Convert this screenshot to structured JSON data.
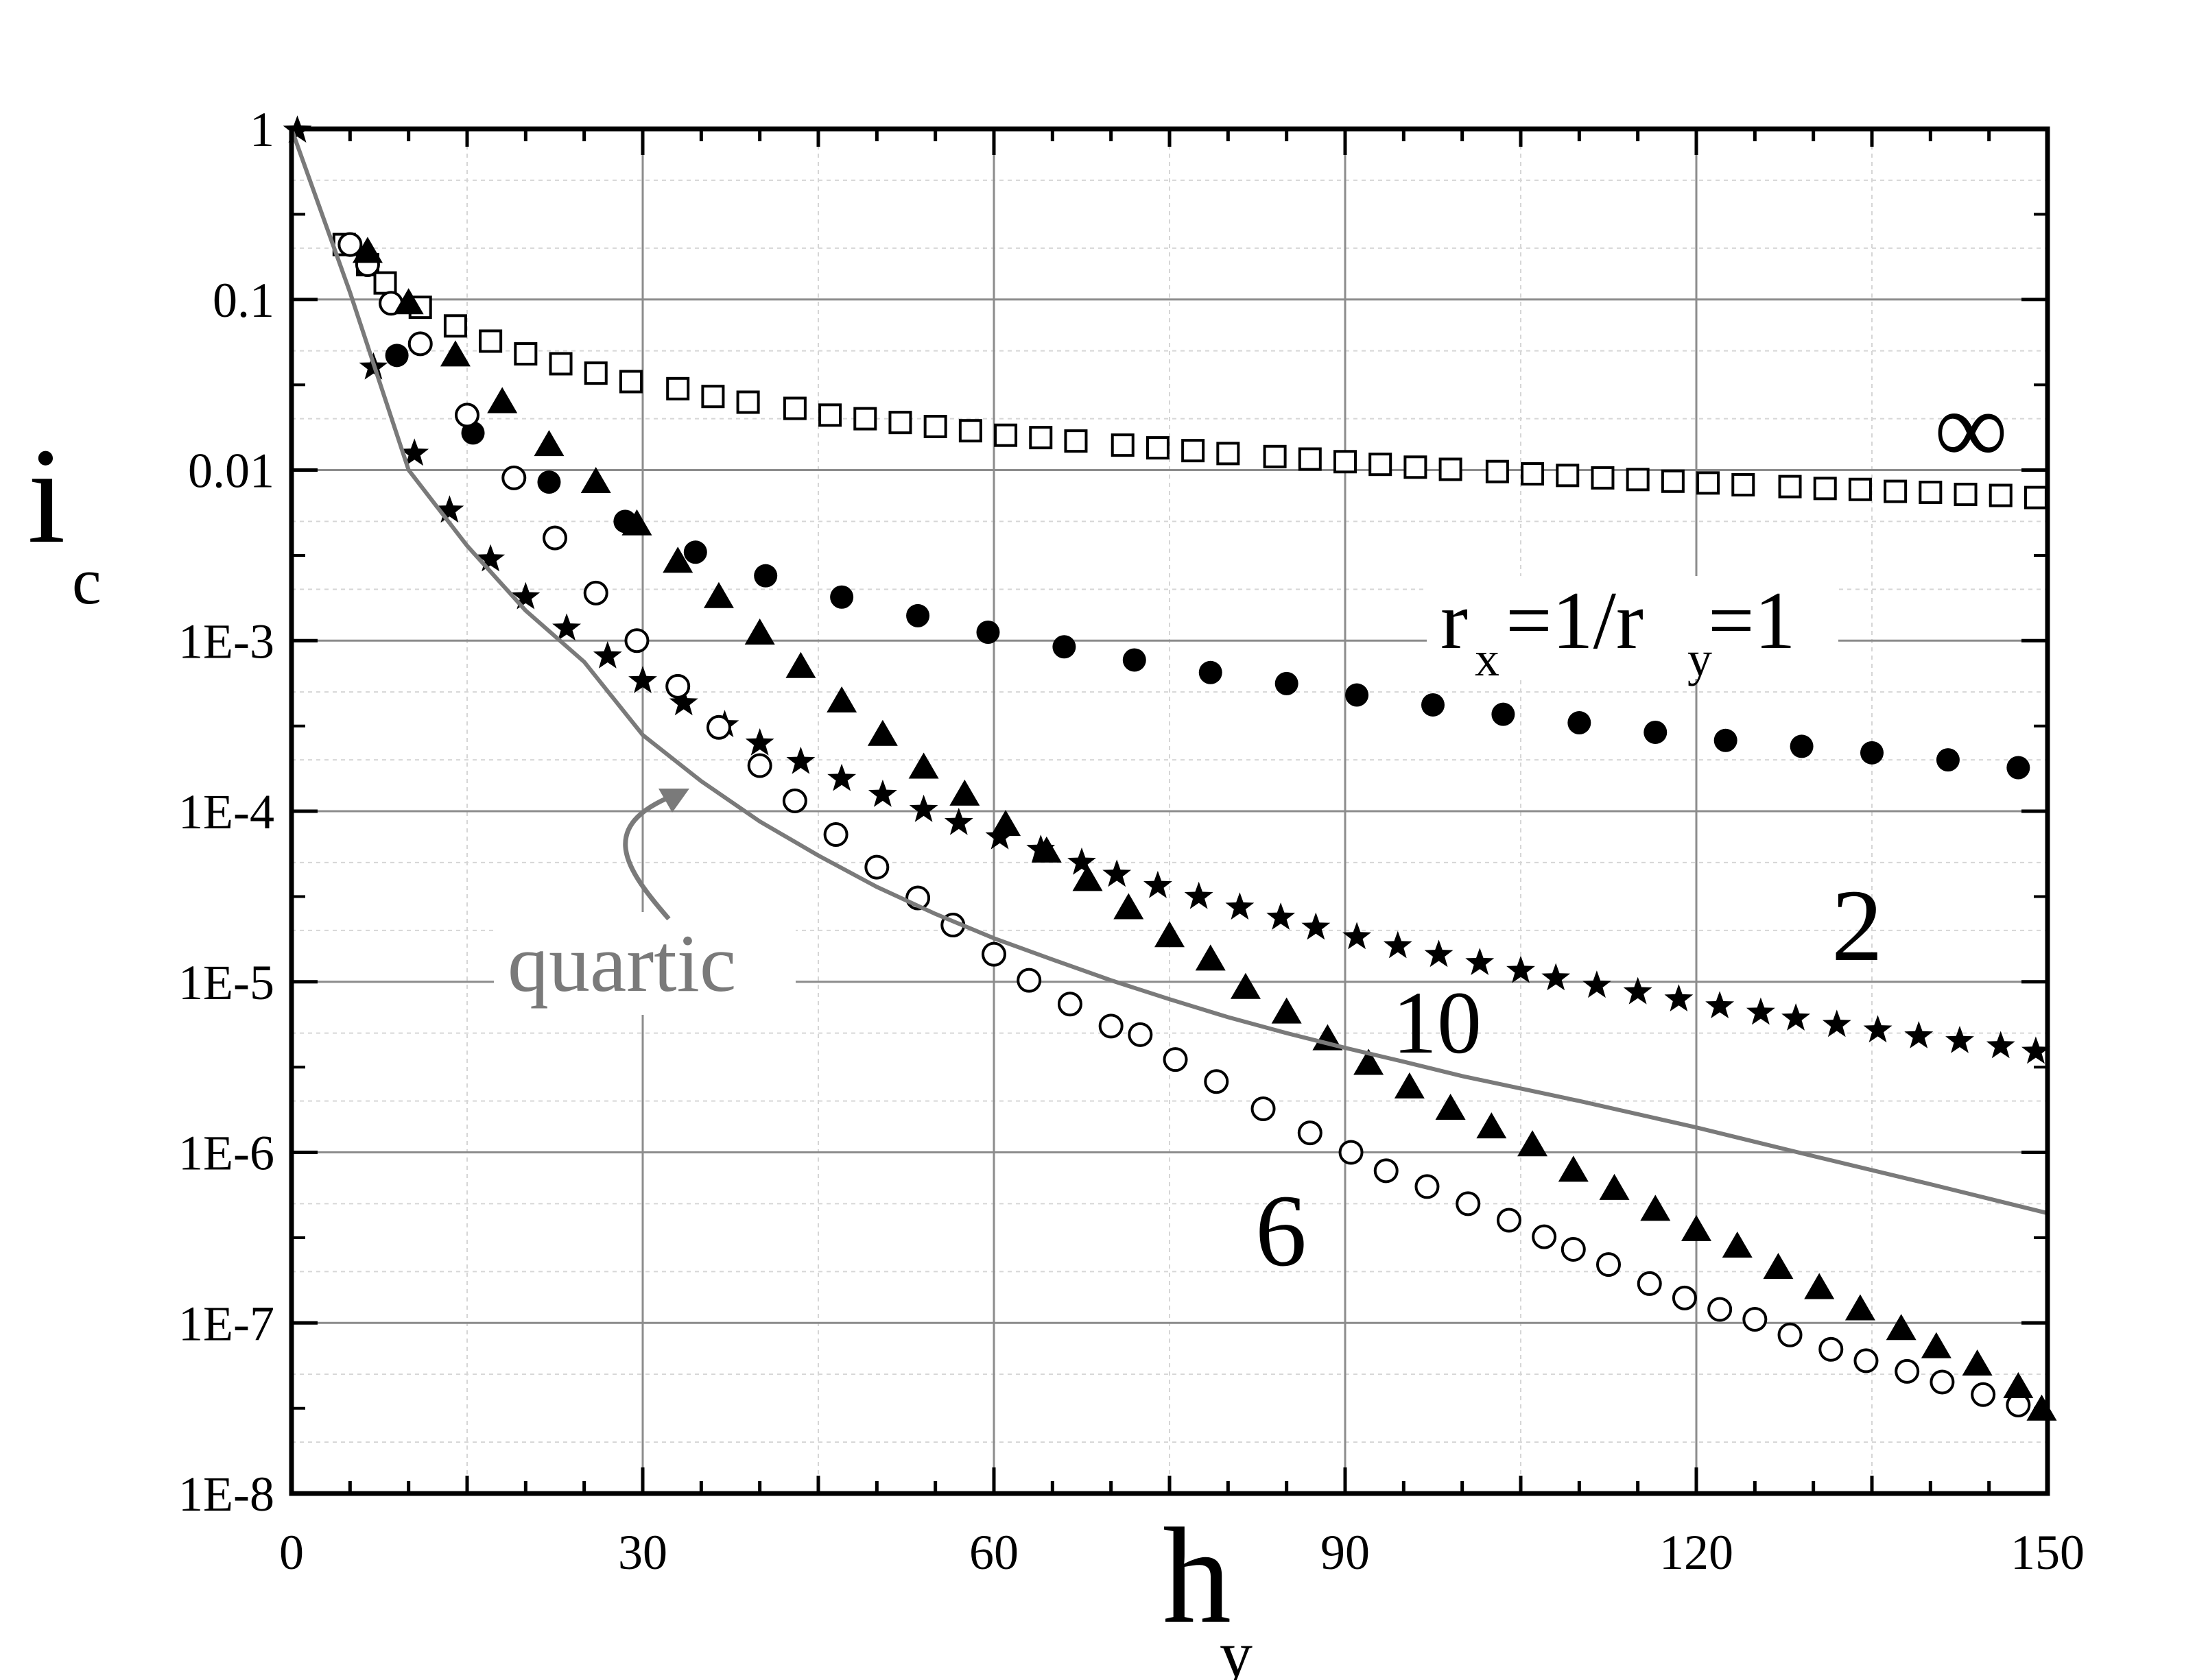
{
  "chart_data": {
    "type": "scatter",
    "title": "",
    "xlabel": {
      "main": "h",
      "sub": "y"
    },
    "ylabel": {
      "main": "i",
      "sub": "c"
    },
    "x_axis": {
      "range": [
        0,
        150
      ],
      "ticks": [
        0,
        30,
        60,
        90,
        120,
        150
      ],
      "tick_labels": [
        "0",
        "30",
        "60",
        "90",
        "120",
        "150"
      ],
      "scale": "linear"
    },
    "y_axis": {
      "range": [
        1e-08,
        1
      ],
      "scale": "log",
      "ticks": [
        1,
        0.1,
        0.01,
        0.001,
        0.0001,
        1e-05,
        1e-06,
        1e-07,
        1e-08
      ],
      "tick_labels": [
        "1",
        "0.1",
        "0.01",
        "1E-3",
        "1E-4",
        "1E-5",
        "1E-6",
        "1E-7",
        "1E-8"
      ]
    },
    "grid": true,
    "annotations": {
      "infinity": "∞",
      "ratio_r1": "r",
      "ratio_r1_sub": "x",
      "ratio_mid": " =1/r",
      "ratio_r2_sub": "y",
      "ratio_end": " =1",
      "two": "2",
      "ten": "10",
      "six": "6",
      "quartic": "quartic"
    },
    "colors": {
      "axis": "#000000",
      "grid": "#8c8c8c",
      "minor_grid": "#d6d6d6",
      "quartic": "#7a7a7a",
      "markers": "#000000"
    },
    "series": [
      {
        "marker": "open-square",
        "label_ref": "∞",
        "x": [
          4.5,
          6.5,
          8,
          11,
          14,
          17,
          20,
          23,
          26,
          29,
          33,
          36,
          39,
          43,
          46,
          49,
          52,
          55,
          58,
          61,
          64,
          67,
          71,
          74,
          77,
          80,
          84,
          87,
          90,
          93,
          96,
          99,
          103,
          106,
          109,
          112,
          115,
          118,
          121,
          124,
          128,
          131,
          134,
          137,
          140,
          143,
          146,
          149
        ],
        "y": [
          0.21,
          0.16,
          0.125,
          0.09,
          0.07,
          0.057,
          0.048,
          0.042,
          0.037,
          0.033,
          0.03,
          0.027,
          0.025,
          0.023,
          0.021,
          0.02,
          0.019,
          0.018,
          0.017,
          0.016,
          0.0155,
          0.0148,
          0.014,
          0.0135,
          0.013,
          0.0125,
          0.012,
          0.0116,
          0.0112,
          0.0108,
          0.0104,
          0.0101,
          0.0098,
          0.0095,
          0.0093,
          0.009,
          0.0088,
          0.0086,
          0.0084,
          0.0082,
          0.008,
          0.0078,
          0.0077,
          0.0075,
          0.0074,
          0.0072,
          0.0071,
          0.0069
        ]
      },
      {
        "marker": "filled-circle",
        "label_ref": "r_x=1/r_y=1",
        "x": [
          9,
          15.5,
          22,
          28.5,
          34.5,
          40.5,
          47,
          53.5,
          59.5,
          66,
          72,
          78.5,
          85,
          91,
          97.5,
          103.5,
          110,
          116.5,
          122.5,
          129,
          135,
          141.5,
          147.5
        ],
        "y": [
          0.047,
          0.0165,
          0.0085,
          0.005,
          0.0033,
          0.0024,
          0.0018,
          0.0014,
          0.00112,
          0.00092,
          0.00077,
          0.00065,
          0.00056,
          0.00048,
          0.00042,
          0.00037,
          0.00033,
          0.00029,
          0.00026,
          0.00024,
          0.00022,
          0.0002,
          0.00018
        ]
      },
      {
        "marker": "filled-star",
        "label_ref": "2",
        "x": [
          0.5,
          7,
          10.5,
          13.5,
          17,
          20,
          23.5,
          27,
          30,
          33.5,
          37,
          40,
          43.5,
          47,
          50.5,
          54,
          57,
          60.5,
          64,
          67.5,
          70.5,
          74,
          77.5,
          81,
          84.5,
          87.5,
          91,
          94.5,
          98,
          101.5,
          105,
          108,
          111.5,
          115,
          118.5,
          122,
          125.5,
          128.5,
          132,
          135.5,
          139,
          142.5,
          146,
          149
        ],
        "y": [
          0.98,
          0.04,
          0.0125,
          0.0058,
          0.003,
          0.0018,
          0.00118,
          0.00081,
          0.00058,
          0.00043,
          0.00032,
          0.00025,
          0.000195,
          0.000155,
          0.000125,
          0.000102,
          8.55e-05,
          7.05e-05,
          5.95e-05,
          5e-05,
          4.25e-05,
          3.65e-05,
          3.15e-05,
          2.73e-05,
          2.38e-05,
          2.08e-05,
          1.83e-05,
          1.62e-05,
          1.44e-05,
          1.29e-05,
          1.16e-05,
          1.05e-05,
          9.5e-06,
          8.7e-06,
          7.9e-06,
          7.2e-06,
          6.6e-06,
          6.1e-06,
          5.6e-06,
          5.2e-06,
          4.8e-06,
          4.5e-06,
          4.2e-06,
          3.9e-06
        ]
      },
      {
        "marker": "open-circle",
        "label_ref": "6",
        "x": [
          5,
          6.5,
          8.5,
          11,
          15,
          19,
          22.5,
          26,
          29.5,
          33,
          36.5,
          40,
          43,
          46.5,
          50,
          53.5,
          56.5,
          60,
          63,
          66.5,
          70,
          72.5,
          75.5,
          79,
          83,
          87,
          90.5,
          93.5,
          97,
          100.5,
          104,
          107,
          109.5,
          112.5,
          116,
          119,
          122,
          125,
          128,
          131.5,
          134.5,
          138,
          141,
          144.5,
          147.5
        ],
        "y": [
          0.21,
          0.16,
          0.095,
          0.055,
          0.021,
          0.009,
          0.004,
          0.0019,
          0.001,
          0.00054,
          0.00031,
          0.000185,
          0.000115,
          7.3e-05,
          4.7e-05,
          3.1e-05,
          2.15e-05,
          1.45e-05,
          1.02e-05,
          7.4e-06,
          5.5e-06,
          4.9e-06,
          3.5e-06,
          2.6e-06,
          1.8e-06,
          1.3e-06,
          1e-06,
          7.8e-07,
          6.3e-07,
          5e-07,
          4e-07,
          3.2e-07,
          2.7e-07,
          2.2e-07,
          1.7e-07,
          1.4e-07,
          1.2e-07,
          1.05e-07,
          8.5e-08,
          7e-08,
          6e-08,
          5.2e-08,
          4.5e-08,
          3.8e-08,
          3.3e-08
        ]
      },
      {
        "marker": "filled-triangle",
        "label_ref": "10",
        "x": [
          6.5,
          10,
          14,
          18,
          22,
          26,
          29.5,
          33,
          36.5,
          40,
          43.5,
          47,
          50.5,
          54,
          57.5,
          61,
          64.5,
          68,
          71.5,
          75,
          78.5,
          81.5,
          85,
          88.5,
          92,
          95.5,
          99,
          102.5,
          106,
          109.5,
          113,
          116.5,
          120,
          123.5,
          127,
          130.5,
          134,
          137.5,
          140.5,
          144,
          147.5,
          149.5
        ],
        "y": [
          0.19,
          0.095,
          0.047,
          0.025,
          0.014,
          0.0085,
          0.0048,
          0.0029,
          0.0018,
          0.0011,
          0.0007,
          0.00044,
          0.00028,
          0.00018,
          0.000125,
          8.3e-05,
          5.8e-05,
          3.95e-05,
          2.7e-05,
          1.85e-05,
          1.35e-05,
          9.2e-06,
          6.6e-06,
          4.6e-06,
          3.3e-06,
          2.4e-06,
          1.8e-06,
          1.4e-06,
          1.1e-06,
          7.8e-07,
          6.1e-07,
          4.6e-07,
          3.5e-07,
          2.8e-07,
          2.1e-07,
          1.6e-07,
          1.2e-07,
          9.2e-08,
          7.2e-08,
          5.7e-08,
          4.2e-08,
          3.1e-08
        ]
      },
      {
        "marker": "line",
        "label_ref": "quartic",
        "x": [
          0,
          5,
          10,
          15,
          20,
          25,
          30,
          35,
          40,
          45,
          50,
          55,
          60,
          65,
          70,
          75,
          80,
          85,
          90,
          95,
          100,
          110,
          120,
          130,
          140,
          150
        ],
        "y": [
          1,
          0.11,
          0.01,
          0.0036,
          0.0015,
          0.00075,
          0.00028,
          0.00015,
          8.7e-05,
          5.5e-05,
          3.6e-05,
          2.5e-05,
          1.8e-05,
          1.35e-05,
          1.02e-05,
          7.9e-06,
          6.2e-06,
          5e-06,
          4.1e-06,
          3.4e-06,
          2.8e-06,
          2e-06,
          1.4e-06,
          9.5e-07,
          6.5e-07,
          4.4e-07
        ]
      }
    ]
  }
}
